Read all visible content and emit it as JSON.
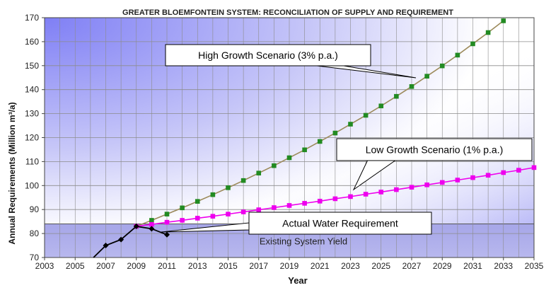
{
  "chart_data": {
    "type": "line",
    "title": "GREATER BLOEMFONTEIN SYSTEM: RECONCILIATION OF SUPPLY AND REQUIREMENT",
    "xlabel": "Year",
    "ylabel": "Annual Requirements (Million m³/a)",
    "xlim": [
      2003,
      2035
    ],
    "ylim": [
      70,
      170
    ],
    "xticks": [
      "2003",
      "2005",
      "2007",
      "2009",
      "2011",
      "2013",
      "2015",
      "2017",
      "2019",
      "2021",
      "2023",
      "2025",
      "2027",
      "2029",
      "2031",
      "2033",
      "2035"
    ],
    "yticks": [
      "70",
      "80",
      "90",
      "100",
      "110",
      "120",
      "130",
      "140",
      "150",
      "160",
      "170"
    ],
    "grid": true,
    "yield_band": {
      "label": "Existing System Yield",
      "value": 84
    },
    "series": [
      {
        "name": "High Growth Scenario (3% p.a.)",
        "color": "#228b22",
        "line_color": "#9c8a5a",
        "marker": "square",
        "x": [
          2009,
          2010,
          2011,
          2012,
          2013,
          2014,
          2015,
          2016,
          2017,
          2018,
          2019,
          2020,
          2021,
          2022,
          2023,
          2024,
          2025,
          2026,
          2027,
          2028,
          2029,
          2030,
          2031,
          2032,
          2033
        ],
        "y": [
          83,
          85.5,
          88.1,
          90.7,
          93.4,
          96.2,
          99.1,
          102.1,
          105.2,
          108.3,
          111.6,
          114.9,
          118.4,
          121.9,
          125.6,
          129.3,
          133.2,
          137.2,
          141.3,
          145.6,
          149.9,
          154.4,
          159.1,
          163.8,
          168.7
        ]
      },
      {
        "name": "Low Growth Scenario (1% p.a.)",
        "color": "#ee00ee",
        "line_color": "#ee00ee",
        "marker": "square",
        "x": [
          2009,
          2010,
          2011,
          2012,
          2013,
          2014,
          2015,
          2016,
          2017,
          2018,
          2019,
          2020,
          2021,
          2022,
          2023,
          2024,
          2025,
          2026,
          2027,
          2028,
          2029,
          2030,
          2031,
          2032,
          2033,
          2034,
          2035
        ],
        "y": [
          83,
          83.8,
          84.7,
          85.5,
          86.4,
          87.2,
          88.1,
          89,
          89.9,
          90.8,
          91.7,
          92.6,
          93.5,
          94.5,
          95.4,
          96.4,
          97.3,
          98.3,
          99.3,
          100.3,
          101.3,
          102.3,
          103.3,
          104.3,
          105.4,
          106.4,
          107.5
        ]
      },
      {
        "name": "Actual Water Requirement",
        "color": "#000000",
        "line_color": "#000000",
        "marker": "diamond",
        "x": [
          2006.2,
          2007,
          2008,
          2009,
          2010,
          2011
        ],
        "y": [
          70,
          75,
          77.5,
          83,
          82,
          79.5
        ]
      }
    ],
    "callouts": {
      "high": "High Growth Scenario (3% p.a.)",
      "low": "Low Growth Scenario (1% p.a.)",
      "actual": "Actual Water Requirement"
    }
  }
}
